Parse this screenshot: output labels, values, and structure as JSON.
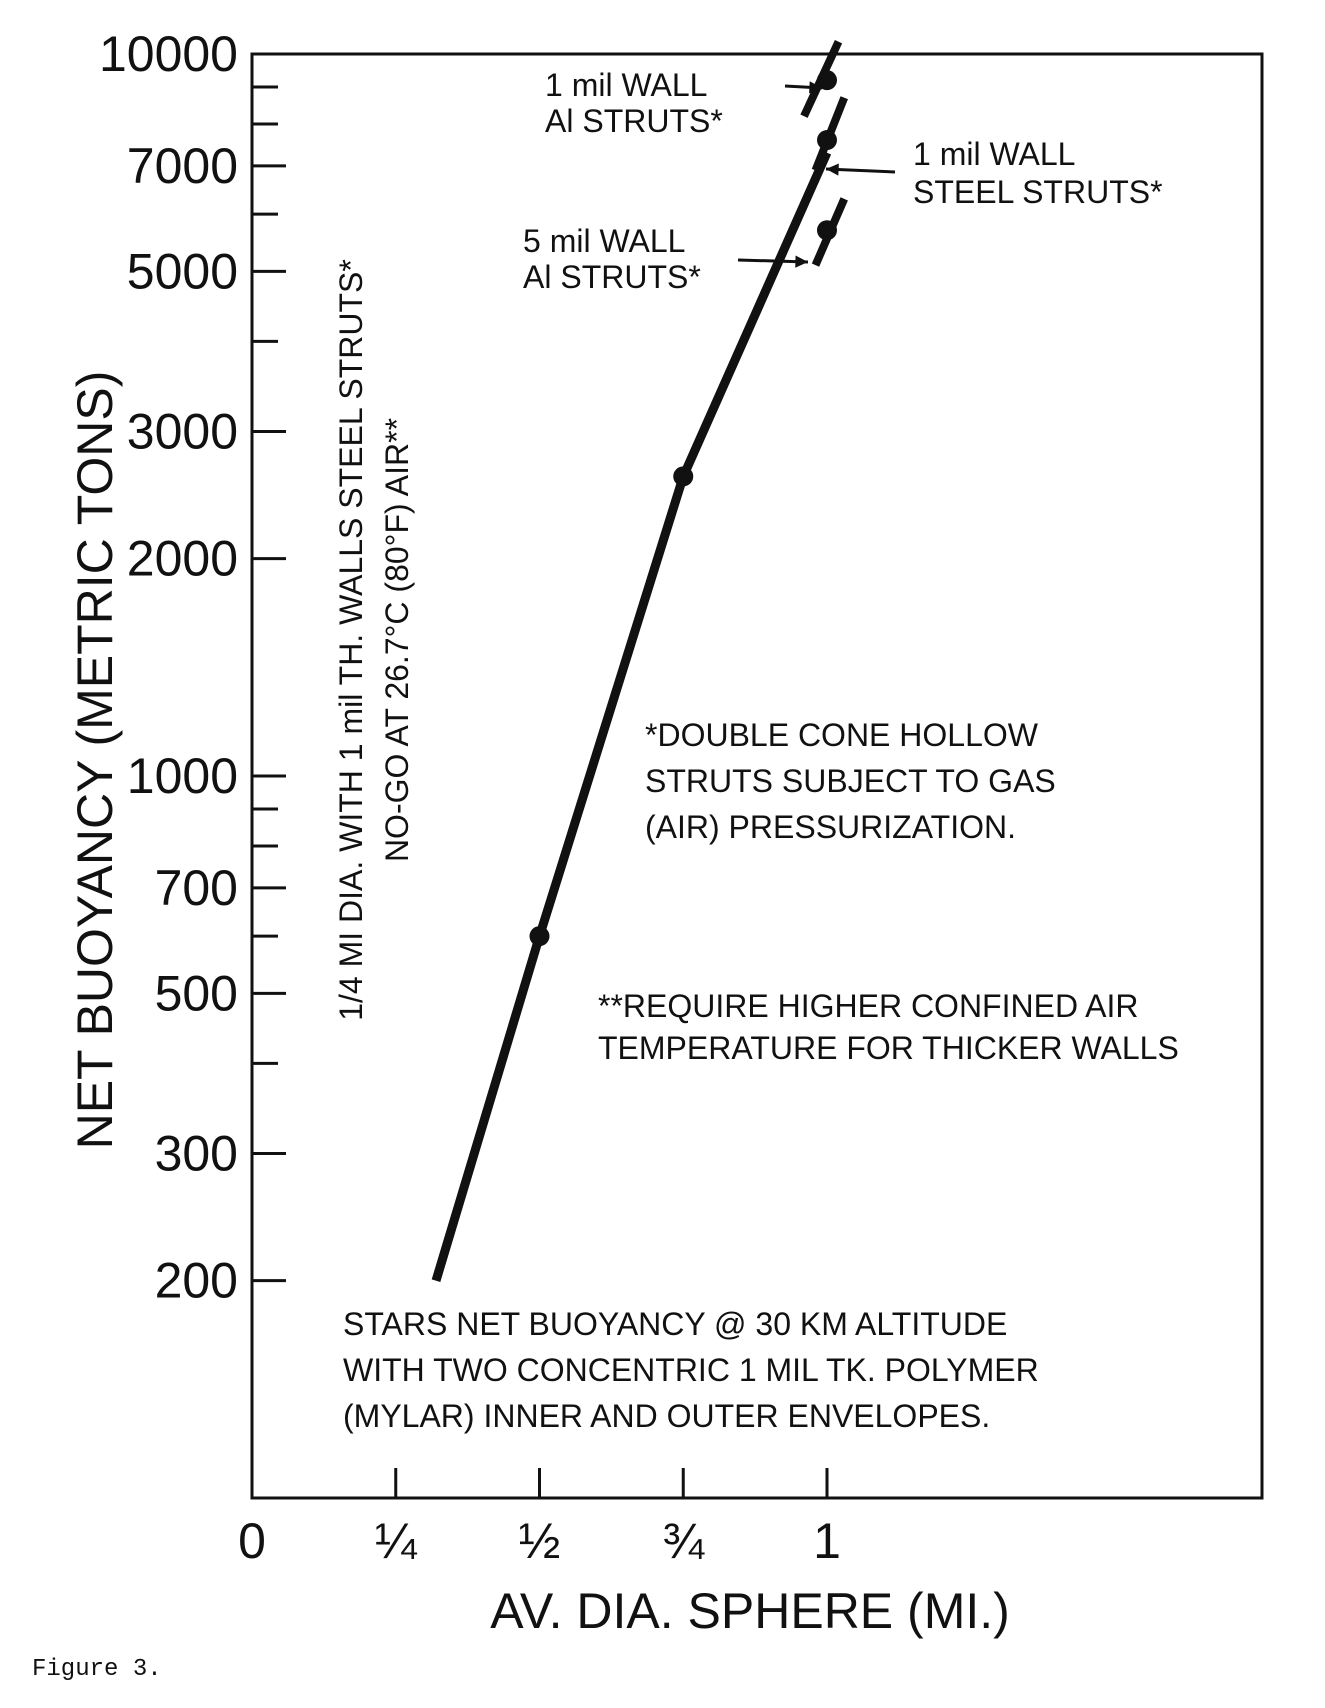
{
  "caption": "Figure 3.",
  "chart_data": {
    "type": "line",
    "title": "",
    "xlabel": "AV. DIA. SPHERE (MI.)",
    "ylabel": "NET BUOYANCY (METRIC TONS)",
    "y_scale": "log",
    "xlim": [
      0,
      1.5
    ],
    "ylim": [
      100,
      10000
    ],
    "grid": false,
    "x_ticks": [
      {
        "value": 0,
        "label": "0"
      },
      {
        "value": 0.25,
        "label": "¼"
      },
      {
        "value": 0.5,
        "label": "½"
      },
      {
        "value": 0.75,
        "label": "¾"
      },
      {
        "value": 1,
        "label": "1"
      }
    ],
    "y_ticks": [
      {
        "value": 200,
        "label": "200"
      },
      {
        "value": 300,
        "label": "300"
      },
      {
        "value": 500,
        "label": "500"
      },
      {
        "value": 700,
        "label": "700"
      },
      {
        "value": 1000,
        "label": "1000"
      },
      {
        "value": 2000,
        "label": "2000"
      },
      {
        "value": 3000,
        "label": "3000"
      },
      {
        "value": 5000,
        "label": "5000"
      },
      {
        "value": 7000,
        "label": "7000"
      },
      {
        "value": 10000,
        "label": "10000"
      }
    ],
    "y_minor_ticks": [
      400,
      600,
      800,
      900,
      4000,
      6000,
      8000,
      9000
    ],
    "series": [
      {
        "x": [
          0.32,
          0.5,
          0.75,
          1.0
        ],
        "y": [
          200,
          600,
          2600,
          7300
        ]
      }
    ],
    "markers": [
      {
        "x": 0.5,
        "y": 600
      },
      {
        "x": 0.75,
        "y": 2600
      },
      {
        "x": 1.0,
        "y": 9200
      },
      {
        "x": 1.0,
        "y": 7600
      },
      {
        "x": 1.0,
        "y": 5700
      }
    ],
    "variant_segments": [
      {
        "x": [
          0.96,
          1.02
        ],
        "y": [
          8200,
          10400
        ]
      },
      {
        "x": [
          0.98,
          1.03
        ],
        "y": [
          6900,
          8700
        ]
      },
      {
        "x": [
          0.98,
          1.03
        ],
        "y": [
          5100,
          6300
        ]
      }
    ],
    "annotations": [
      {
        "lines": [
          "1 mil WALL",
          "Al STRUTS*"
        ]
      },
      {
        "lines": [
          "1 mil WALL",
          "STEEL STRUTS*"
        ]
      },
      {
        "lines": [
          "5 mil WALL",
          "Al STRUTS*"
        ]
      },
      {
        "lines": [
          "1/4 MI DIA. WITH 1 mil TH. WALLS STEEL STRUTS*",
          "NO-GO AT 26.7°C (80°F) AIR**"
        ]
      },
      {
        "lines": [
          "*DOUBLE CONE HOLLOW",
          "STRUTS SUBJECT TO GAS",
          "(AIR) PRESSURIZATION."
        ]
      },
      {
        "lines": [
          "**REQUIRE HIGHER CONFINED AIR",
          "TEMPERATURE FOR THICKER WALLS"
        ]
      },
      {
        "lines": [
          "STARS NET BUOYANCY @ 30 KM ALTITUDE",
          "WITH TWO CONCENTRIC 1 MIL TK. POLYMER",
          "(MYLAR) INNER AND OUTER ENVELOPES."
        ]
      }
    ]
  }
}
